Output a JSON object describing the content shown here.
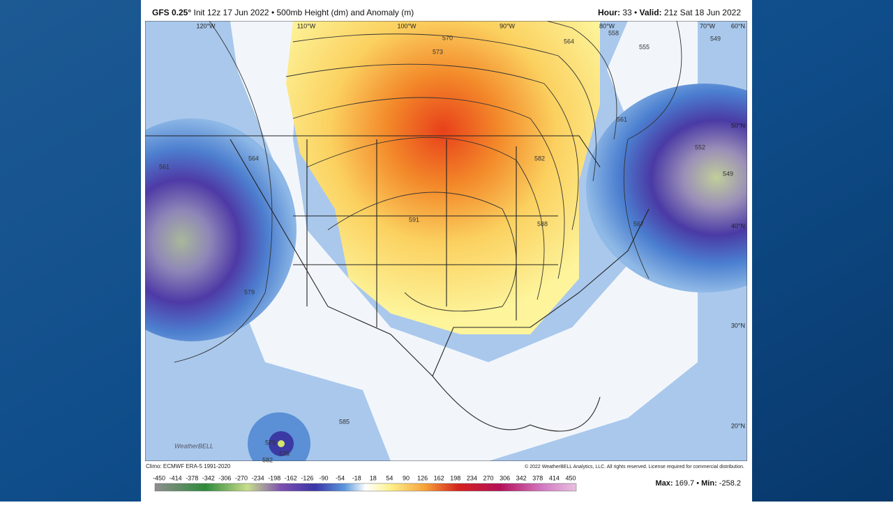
{
  "header": {
    "model": "GFS 0.25°",
    "init": "Init 12z 17 Jun 2022",
    "separator": "•",
    "product": "500mb Height (dm) and Anomaly (m)",
    "hour_label": "Hour:",
    "hour": "33",
    "valid_label": "Valid:",
    "valid": "21z Sat 18 Jun 2022"
  },
  "map": {
    "longitude_labels": [
      "120°W",
      "110°W",
      "100°W",
      "90°W",
      "80°W",
      "70°W"
    ],
    "latitude_labels": [
      "60°N",
      "50°N",
      "40°N",
      "30°N",
      "20°N"
    ],
    "contour_labels": [
      "570",
      "573",
      "564",
      "558",
      "555",
      "561",
      "552",
      "549",
      "549",
      "567",
      "564",
      "561",
      "579",
      "591",
      "588",
      "582",
      "585",
      "579",
      "576",
      "582"
    ],
    "watermark": "WeatherBELL"
  },
  "footer": {
    "climo": "Climo: ECMWF ERA-5 1991-2020",
    "copyright": "© 2022 WeatherBELL Analytics, LLC. All rights reserved. License required for commercial distribution.",
    "colorbar_ticks": [
      -450,
      -414,
      -378,
      -342,
      -306,
      -270,
      -234,
      -198,
      -162,
      -126,
      -90,
      -54,
      -18,
      18,
      54,
      90,
      126,
      162,
      198,
      234,
      270,
      306,
      342,
      378,
      414,
      450
    ],
    "max_label": "Max:",
    "max": 169.7,
    "min_label": "Min:",
    "min": -258.2
  }
}
